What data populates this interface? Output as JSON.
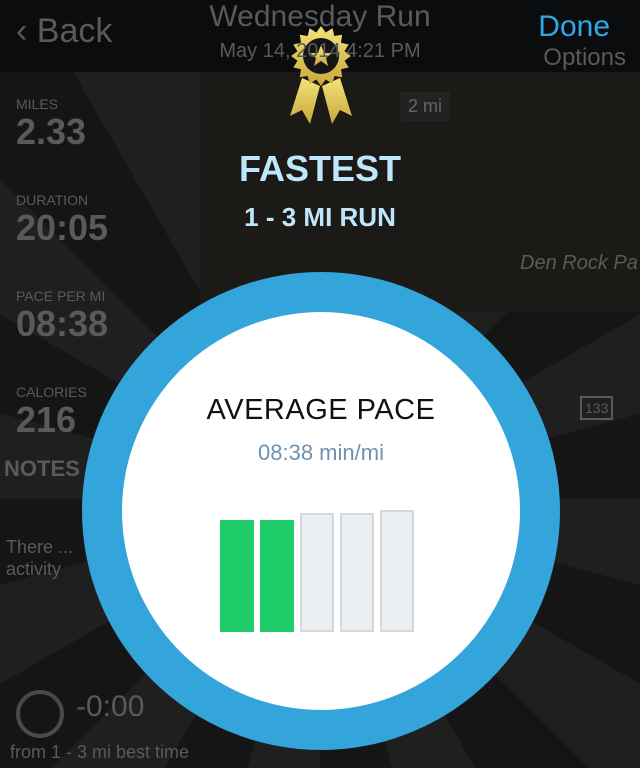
{
  "background": {
    "nav": {
      "back": "Back",
      "title": "Wednesday Run",
      "subtitle": "May 14, 2014 4:21 PM",
      "options": "Options"
    },
    "stats": [
      {
        "label": "MILES",
        "value": "2.33"
      },
      {
        "label": "DURATION",
        "value": "20:05"
      },
      {
        "label": "PACE PER MI",
        "value": "08:38"
      },
      {
        "label": "CALORIES",
        "value": "216"
      }
    ],
    "notes_label": "NOTES",
    "notes_text": "There ... activity",
    "map_label": "Den Rock Pa",
    "map_marker": "2 mi",
    "road_sign": "133",
    "best_delta": "-0:00",
    "best_caption": "from 1 - 3 mi best time"
  },
  "modal": {
    "done": "Done",
    "badge_icon": "award-ribbon-star-icon",
    "title": "FASTEST",
    "subtitle": "1 - 3 MI RUN",
    "card_title": "AVERAGE PACE",
    "card_value": "08:38 min/mi",
    "level": {
      "filled": 2,
      "total": 5
    },
    "colors": {
      "ring": "#33a5da",
      "filled": "#1fcc6a",
      "empty": "#ebeff2",
      "title": "#bfe7fb",
      "done": "#2fa8e6"
    }
  }
}
